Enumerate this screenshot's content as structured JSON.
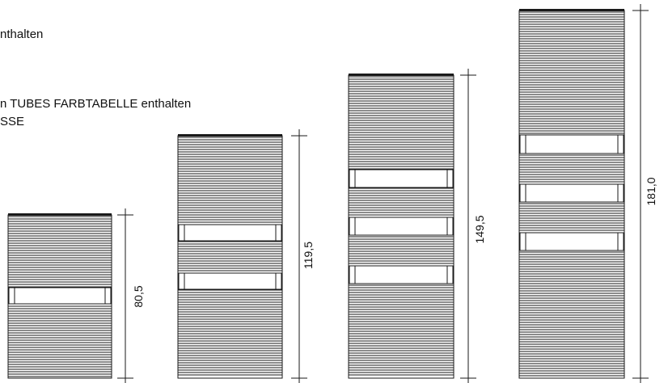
{
  "notes": {
    "line1": "nthalten",
    "line2": "n TUBES FARBTABELLE enthalten",
    "line3": "SSE"
  },
  "colors": {
    "ink": "#1a1a1a",
    "bar_fill": "#ffffff"
  },
  "radiators": [
    {
      "height_label": "80,5",
      "gap_count": 1
    },
    {
      "height_label": "119,5",
      "gap_count": 2
    },
    {
      "height_label": "149,5",
      "gap_count": 3
    },
    {
      "height_label": "181,0",
      "gap_count": 3
    }
  ]
}
